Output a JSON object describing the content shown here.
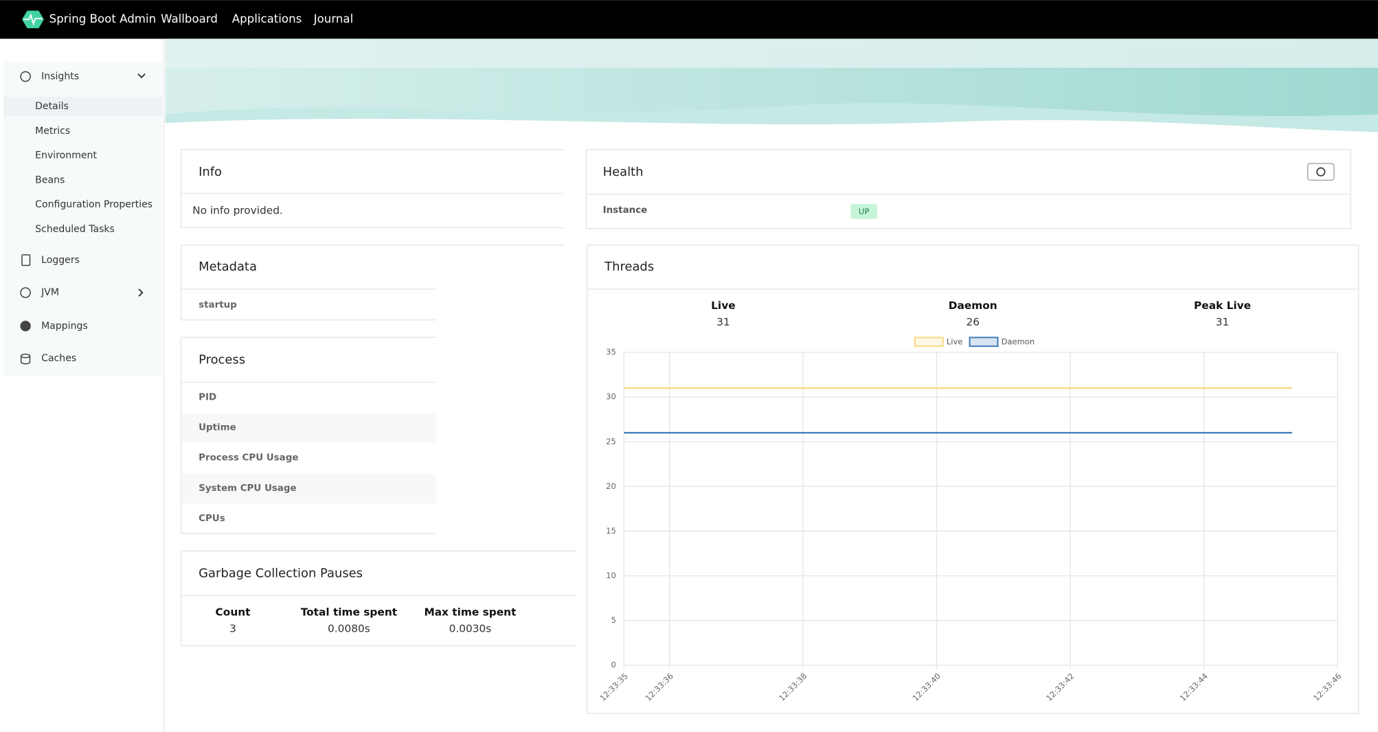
{
  "nav": {
    "brand": "Spring Boot Admin",
    "links": [
      "Wallboard",
      "Applications",
      "Journal"
    ]
  },
  "sidebar": {
    "items": [
      {
        "label": "Insights",
        "sub": [
          "Details",
          "Metrics",
          "Environment",
          "Beans",
          "Configuration Properties",
          "Scheduled Tasks"
        ]
      },
      {
        "label": "Loggers"
      },
      {
        "label": "JVM"
      },
      {
        "label": "Mappings"
      },
      {
        "label": "Caches"
      }
    ]
  },
  "info": {
    "title": "Info",
    "text": "No info provided."
  },
  "health": {
    "title": "Health",
    "rows": [
      {
        "label": "Instance",
        "status": "UP"
      }
    ]
  },
  "metadata": {
    "title": "Metadata",
    "rows": [
      "startup"
    ]
  },
  "process": {
    "title": "Process",
    "rows": [
      "PID",
      "Uptime",
      "Process CPU Usage",
      "System CPU Usage",
      "CPUs"
    ]
  },
  "gc": {
    "title": "Garbage Collection Pauses",
    "stats": [
      {
        "label": "Count",
        "value": 3
      },
      {
        "label": "Total time spent",
        "value": "0.0080s"
      },
      {
        "label": "Max time spent",
        "value": "0.0030s"
      }
    ]
  },
  "threads": {
    "title": "Threads",
    "stats": [
      {
        "label": "Live",
        "value": 31
      },
      {
        "label": "Daemon",
        "value": 26
      },
      {
        "label": "Peak Live",
        "value": 31
      }
    ]
  },
  "chart_data": {
    "type": "line",
    "x": [
      35.32,
      36.32,
      37.32,
      38.32,
      39.32,
      40.32,
      41.32,
      42.32,
      43.32,
      44.32,
      45.32
    ],
    "series": [
      {
        "name": "Live",
        "color": "#f9d77c",
        "values": [
          31,
          31,
          31,
          31,
          31,
          31,
          31,
          31,
          31,
          31,
          31
        ]
      },
      {
        "name": "Daemon",
        "color": "#3a78b8",
        "values": [
          26,
          26,
          26,
          26,
          26,
          26,
          26,
          26,
          26,
          26,
          26
        ]
      }
    ],
    "xlim": [
      35.32,
      46
    ],
    "xticks": [
      {
        "value": 35.32,
        "label": "12:33:35"
      },
      {
        "value": 36,
        "label": "12:33:36"
      },
      {
        "value": 38,
        "label": "12:33:38"
      },
      {
        "value": 40,
        "label": "12:33:40"
      },
      {
        "value": 42,
        "label": "12:33:42"
      },
      {
        "value": 44,
        "label": "12:33:44"
      },
      {
        "value": 46,
        "label": "12:33:46"
      }
    ],
    "ylim": [
      0,
      35
    ],
    "yticks": [
      0,
      5,
      10,
      15,
      20,
      25,
      30,
      35
    ],
    "grid": true,
    "legend": "top"
  }
}
